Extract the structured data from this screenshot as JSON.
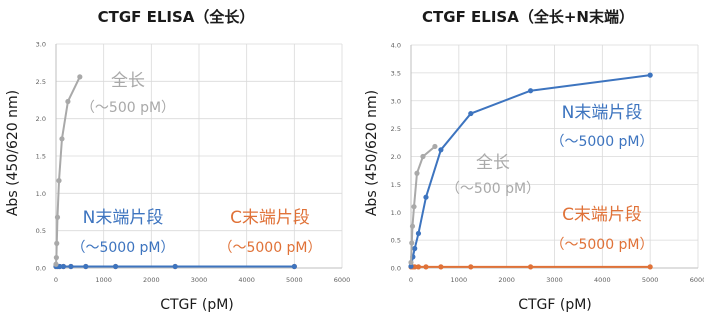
{
  "colors": {
    "full_length": "#a9a9a9",
    "n_fragment": "#3d74bf",
    "c_fragment": "#e07238",
    "grid": "#dadada",
    "axis": "#bfbfbf"
  },
  "chart_data": [
    {
      "type": "line",
      "title": "CTGF ELISA（全长）",
      "xlabel": "CTGF (pM)",
      "ylabel": "Abs (450/620 nm)",
      "xlim": [
        0,
        6000
      ],
      "ylim": [
        0,
        3.0
      ],
      "xticks": [
        "0",
        "1000",
        "2000",
        "3000",
        "4000",
        "5000",
        "6000"
      ],
      "yticks": [
        "0.0",
        "0.5",
        "1.0",
        "1.5",
        "2.0",
        "2.5",
        "3.0"
      ],
      "grid": true,
      "series": [
        {
          "key": "full",
          "name": "全长",
          "name_sub": "（～500 pM）",
          "color": "#a9a9a9",
          "x": [
            0,
            8,
            16,
            31,
            63,
            125,
            250,
            500
          ],
          "y": [
            0.05,
            0.14,
            0.33,
            0.68,
            1.17,
            1.73,
            2.23,
            2.56
          ]
        },
        {
          "key": "nfrag",
          "name": "N末端片段",
          "name_sub": "（～5000 pM）",
          "color": "#3d74bf",
          "x": [
            0,
            39,
            78,
            156,
            313,
            625,
            1250,
            2500,
            5000
          ],
          "y": [
            0.02,
            0.02,
            0.02,
            0.02,
            0.02,
            0.02,
            0.02,
            0.02,
            0.02
          ]
        },
        {
          "key": "cfrag",
          "name": "C末端片段",
          "name_sub": "（～5000 pM）",
          "color": "#e07238",
          "x": [
            0,
            39,
            78,
            156,
            313,
            625,
            1250,
            2500,
            5000
          ],
          "y": [
            0.02,
            0.02,
            0.02,
            0.02,
            0.02,
            0.02,
            0.02,
            0.02,
            0.02
          ]
        }
      ]
    },
    {
      "type": "line",
      "title": "CTGF ELISA（全长+N末端）",
      "xlabel": "CTGF (pM)",
      "ylabel": "Abs (450/620 nm)",
      "xlim": [
        0,
        6000
      ],
      "ylim": [
        0,
        4.0
      ],
      "xticks": [
        "0",
        "1000",
        "2000",
        "3000",
        "4000",
        "5000",
        "6000"
      ],
      "yticks": [
        "0.0",
        "0.5",
        "1.0",
        "1.5",
        "2.0",
        "2.5",
        "3.0",
        "3.5",
        "4.0"
      ],
      "grid": true,
      "series": [
        {
          "key": "full",
          "name": "全长",
          "name_sub": "（～500 pM）",
          "color": "#a9a9a9",
          "x": [
            0,
            16,
            31,
            63,
            125,
            250,
            500
          ],
          "y": [
            0.1,
            0.45,
            0.75,
            1.1,
            1.7,
            2.0,
            2.18
          ]
        },
        {
          "key": "nfrag",
          "name": "N末端片段",
          "name_sub": "（～5000 pM）",
          "color": "#3d74bf",
          "x": [
            0,
            39,
            78,
            156,
            313,
            625,
            1250,
            2500,
            5000
          ],
          "y": [
            0.03,
            0.2,
            0.35,
            0.62,
            1.27,
            2.12,
            2.77,
            3.18,
            3.46
          ]
        },
        {
          "key": "cfrag",
          "name": "C末端片段",
          "name_sub": "（～5000 pM）",
          "color": "#e07238",
          "x": [
            0,
            39,
            78,
            156,
            313,
            625,
            1250,
            2500,
            5000
          ],
          "y": [
            0.02,
            0.02,
            0.02,
            0.02,
            0.02,
            0.02,
            0.02,
            0.02,
            0.02
          ]
        }
      ]
    }
  ]
}
